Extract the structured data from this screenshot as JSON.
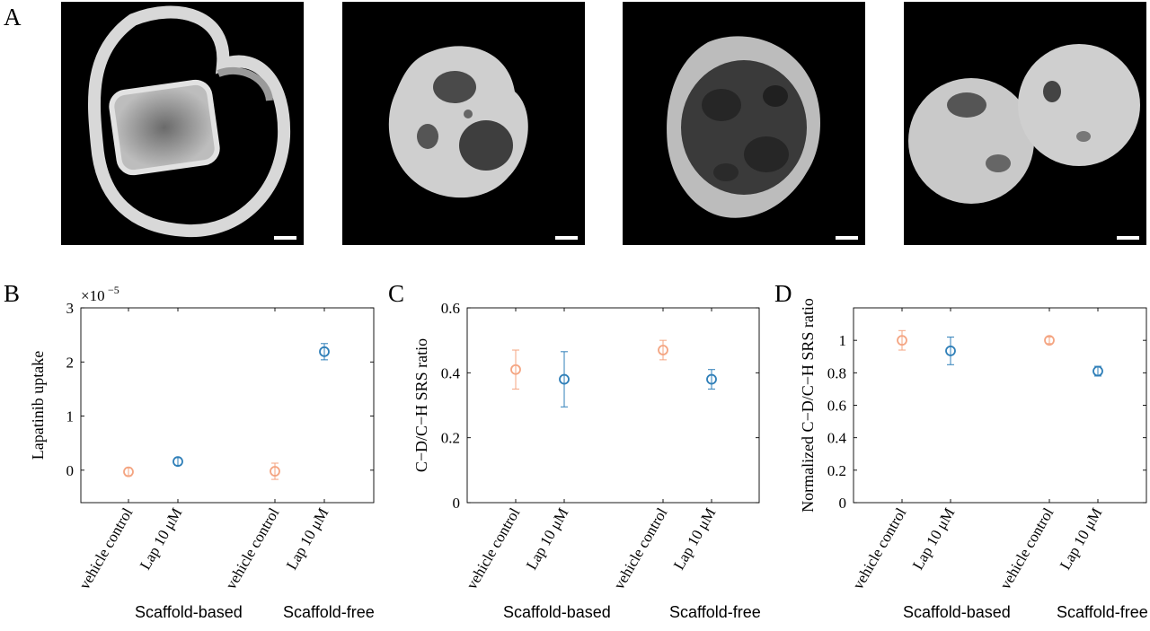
{
  "panels": {
    "A": "A",
    "B": "B",
    "C": "C",
    "D": "D"
  },
  "colors": {
    "vehicle": "#f4a582",
    "lap": "#2f7fb8"
  },
  "chart_data": [
    {
      "id": "B",
      "type": "scatter",
      "ylabel": "Lapatinib uptake",
      "exponent_label": "×10",
      "exponent_power": "−5",
      "ylim": [
        -0.6,
        3.0
      ],
      "yticks": [
        "0",
        "1",
        "2",
        "3"
      ],
      "ytick_values": [
        0,
        1,
        2,
        3
      ],
      "categories": [
        "vehicle control",
        "Lap 10 μM",
        "vehicle control",
        "Lap 10 μM"
      ],
      "groups": [
        "Scaffold-based",
        "Scaffold-free"
      ],
      "values": [
        -0.03,
        0.16,
        -0.02,
        2.19
      ],
      "errors": [
        0.07,
        0.07,
        0.15,
        0.15
      ],
      "series_colors": [
        "vehicle",
        "lap",
        "vehicle",
        "lap"
      ]
    },
    {
      "id": "C",
      "type": "scatter",
      "ylabel": "C−D/C−H SRS ratio",
      "ylim": [
        0,
        0.6
      ],
      "yticks": [
        "0",
        "0.2",
        "0.4",
        "0.6"
      ],
      "ytick_values": [
        0,
        0.2,
        0.4,
        0.6
      ],
      "categories": [
        "vehicle control",
        "Lap 10 μM",
        "vehicle control",
        "Lap 10 μM"
      ],
      "groups": [
        "Scaffold-based",
        "Scaffold-free"
      ],
      "values": [
        0.41,
        0.38,
        0.47,
        0.38
      ],
      "errors": [
        0.06,
        0.085,
        0.03,
        0.03
      ],
      "series_colors": [
        "vehicle",
        "lap",
        "vehicle",
        "lap"
      ]
    },
    {
      "id": "D",
      "type": "scatter",
      "ylabel": "Normalized C−D/C−H SRS ratio",
      "ylim": [
        0,
        1.2
      ],
      "yticks": [
        "0",
        "0.2",
        "0.4",
        "0.6",
        "0.8",
        "1"
      ],
      "ytick_values": [
        0,
        0.2,
        0.4,
        0.6,
        0.8,
        1.0
      ],
      "categories": [
        "vehicle control",
        "Lap 10 μM",
        "vehicle control",
        "Lap 10 μM"
      ],
      "groups": [
        "Scaffold-based",
        "Scaffold-free"
      ],
      "values": [
        1.0,
        0.935,
        1.0,
        0.81
      ],
      "errors": [
        0.06,
        0.085,
        0.02,
        0.03
      ],
      "series_colors": [
        "vehicle",
        "lap",
        "vehicle",
        "lap"
      ]
    }
  ]
}
